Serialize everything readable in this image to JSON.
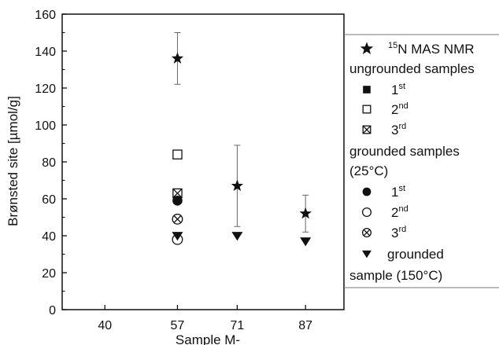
{
  "chart_data": {
    "type": "scatter",
    "ylabel": "Brønsted site [µmol/g]",
    "xlabel": "Sample M-",
    "xlim": [
      30,
      96
    ],
    "ylim": [
      0,
      160
    ],
    "x_ticks": [
      40,
      57,
      71,
      87
    ],
    "y_ticks": [
      0,
      20,
      40,
      60,
      80,
      100,
      120,
      140,
      160
    ],
    "grid": false,
    "legend_position": "right",
    "legend": [
      {
        "marker": "star",
        "sup": "15",
        "text": "N MAS NMR"
      },
      {
        "marker": "none",
        "text": "ungrounded samples"
      },
      {
        "marker": "square-filled",
        "text": "1",
        "sup_after": "st"
      },
      {
        "marker": "square-open",
        "text": "2",
        "sup_after": "nd"
      },
      {
        "marker": "square-cross",
        "text": "3",
        "sup_after": "rd"
      },
      {
        "marker": "none",
        "text": "grounded samples"
      },
      {
        "marker": "none",
        "text": "(25°C)"
      },
      {
        "marker": "circle-filled",
        "text": "1",
        "sup_after": "st"
      },
      {
        "marker": "circle-open",
        "text": "2",
        "sup_after": "nd"
      },
      {
        "marker": "circle-cross",
        "text": "3",
        "sup_after": "rd"
      },
      {
        "marker": "triangle-down",
        "text": "grounded"
      },
      {
        "marker": "none",
        "text": "sample (150°C)"
      }
    ],
    "series": [
      {
        "marker": "star",
        "x": [
          57,
          71,
          87
        ],
        "y": [
          136,
          67,
          52
        ],
        "err": [
          14,
          22,
          10
        ]
      },
      {
        "marker": "square-filled",
        "x": [
          57
        ],
        "y": [
          62
        ]
      },
      {
        "marker": "square-open",
        "x": [
          57
        ],
        "y": [
          84
        ]
      },
      {
        "marker": "square-cross",
        "x": [
          57
        ],
        "y": [
          63
        ]
      },
      {
        "marker": "circle-filled",
        "x": [
          57
        ],
        "y": [
          59
        ]
      },
      {
        "marker": "circle-open",
        "x": [
          57
        ],
        "y": [
          38
        ]
      },
      {
        "marker": "circle-cross",
        "x": [
          57
        ],
        "y": [
          49
        ]
      },
      {
        "marker": "triangle-down",
        "x": [
          57,
          71,
          87
        ],
        "y": [
          40,
          40,
          37
        ]
      }
    ]
  }
}
